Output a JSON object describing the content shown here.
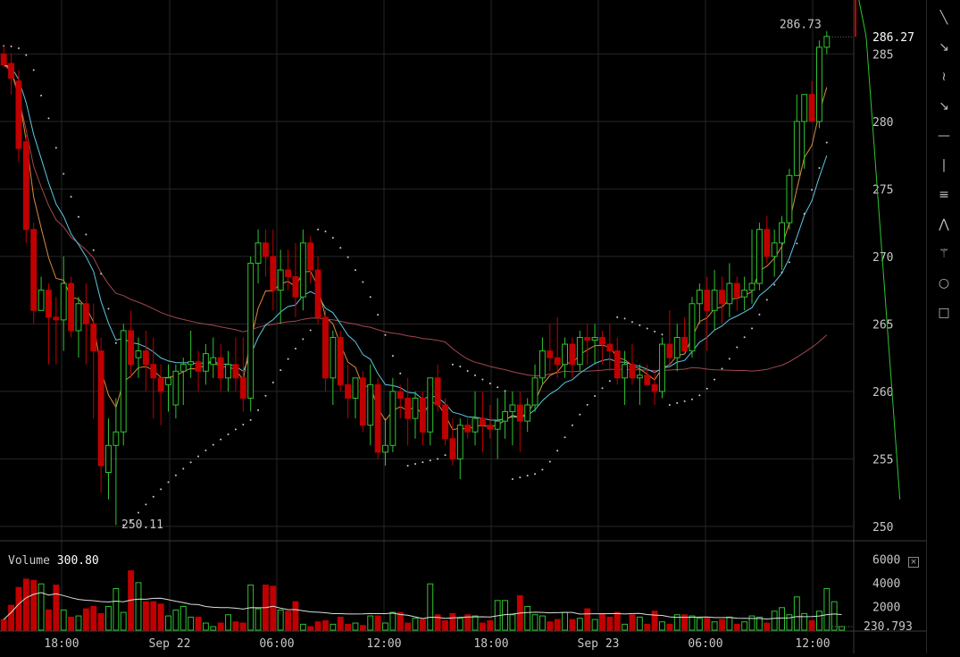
{
  "toolbar": {
    "tools": [
      {
        "name": "trend-line-icon",
        "glyph": "╲"
      },
      {
        "name": "ray-icon",
        "glyph": "↘"
      },
      {
        "name": "freehand-icon",
        "glyph": "≀"
      },
      {
        "name": "arrow-icon",
        "glyph": "↘"
      },
      {
        "name": "horizontal-line-icon",
        "glyph": "—"
      },
      {
        "name": "vertical-line-icon",
        "glyph": "|"
      },
      {
        "name": "parallel-channel-icon",
        "glyph": "≡"
      },
      {
        "name": "fan-icon",
        "glyph": "⋀"
      },
      {
        "name": "fibonacci-icon",
        "glyph": "⚚"
      },
      {
        "name": "circle-icon",
        "glyph": "○"
      },
      {
        "name": "rectangle-icon",
        "glyph": "□"
      }
    ]
  },
  "volume_panel": {
    "label": "Volume",
    "value": "300.80",
    "close_glyph": "×"
  },
  "colors": {
    "up": "#2fc42f",
    "down": "#c00000",
    "ma_fast": "#e08a3c",
    "ma_mid": "#5ec8e0",
    "ma_slow": "#a0484e",
    "sar": "#cccccc",
    "grid": "#262626",
    "text": "#c8c8c8"
  },
  "chart_data": {
    "type": "candlestick",
    "price_axis": {
      "ticks": [
        250,
        255,
        260,
        265,
        270,
        275,
        280,
        285
      ],
      "range": [
        249,
        289
      ]
    },
    "volume_axis": {
      "ticks": [
        2000,
        4000,
        6000
      ],
      "range": [
        0,
        7000
      ]
    },
    "time_labels": [
      "18:00",
      "Sep 22",
      "06:00",
      "12:00",
      "18:00",
      "Sep 23",
      "06:00",
      "12:00"
    ],
    "last_price": "286.27",
    "high_marker": "286.73",
    "low_marker": "250.11",
    "last_volume": "230.793",
    "candles": [
      [
        285.0,
        285.6,
        284.0,
        284.2
      ],
      [
        284.3,
        285.0,
        282.0,
        283.2
      ],
      [
        283.0,
        283.8,
        277.0,
        278.0
      ],
      [
        278.5,
        279.0,
        271.0,
        272.0
      ],
      [
        272.0,
        272.5,
        265.0,
        266.0
      ],
      [
        266.0,
        268.5,
        266.0,
        267.5
      ],
      [
        267.5,
        268.0,
        262.0,
        265.5
      ],
      [
        265.5,
        267.0,
        262.0,
        265.3
      ],
      [
        265.3,
        270.0,
        263.0,
        268.0
      ],
      [
        268.0,
        268.5,
        264.0,
        264.5
      ],
      [
        264.5,
        267.0,
        262.5,
        266.5
      ],
      [
        266.5,
        268.0,
        262.0,
        265.0
      ],
      [
        265.0,
        266.5,
        258.0,
        263.0
      ],
      [
        263.0,
        264.0,
        252.5,
        254.5
      ],
      [
        254.0,
        258.0,
        252.0,
        256.0
      ],
      [
        256.0,
        259.5,
        250.1,
        257.0
      ],
      [
        257.0,
        265.0,
        256.0,
        264.5
      ],
      [
        264.5,
        266.0,
        261.0,
        262.0
      ],
      [
        262.5,
        264.0,
        261.0,
        263.0
      ],
      [
        263.0,
        264.5,
        260.0,
        262.0
      ],
      [
        262.0,
        264.0,
        258.0,
        261.0
      ],
      [
        261.0,
        262.0,
        257.5,
        260.0
      ],
      [
        260.5,
        262.0,
        258.5,
        261.0
      ],
      [
        259.0,
        262.0,
        258.0,
        261.5
      ],
      [
        261.5,
        262.5,
        259.0,
        262.0
      ],
      [
        262.0,
        264.5,
        261.0,
        262.2
      ],
      [
        262.2,
        263.0,
        260.0,
        261.5
      ],
      [
        261.5,
        263.5,
        260.5,
        262.8
      ],
      [
        262.0,
        264.0,
        261.0,
        262.5
      ],
      [
        262.5,
        263.5,
        260.0,
        261.0
      ],
      [
        261.0,
        263.0,
        260.0,
        262.0
      ],
      [
        262.0,
        264.0,
        260.0,
        261.0
      ],
      [
        261.0,
        264.0,
        258.5,
        259.5
      ],
      [
        259.5,
        270.0,
        258.5,
        269.5
      ],
      [
        269.5,
        272.0,
        268.0,
        271.0
      ],
      [
        271.0,
        272.0,
        268.5,
        270.0
      ],
      [
        270.0,
        272.0,
        266.0,
        267.5
      ],
      [
        267.5,
        270.5,
        265.0,
        269.0
      ],
      [
        269.0,
        270.5,
        267.5,
        268.5
      ],
      [
        268.5,
        271.0,
        265.5,
        267.0
      ],
      [
        267.0,
        272.0,
        266.0,
        271.0
      ],
      [
        271.0,
        271.5,
        268.0,
        269.0
      ],
      [
        269.0,
        270.0,
        265.0,
        265.5
      ],
      [
        265.5,
        266.0,
        260.0,
        261.0
      ],
      [
        261.0,
        264.5,
        259.0,
        264.0
      ],
      [
        264.0,
        264.5,
        260.0,
        260.5
      ],
      [
        260.5,
        262.0,
        258.0,
        259.5
      ],
      [
        259.5,
        261.0,
        258.0,
        261.0
      ],
      [
        261.0,
        261.5,
        257.0,
        257.5
      ],
      [
        257.5,
        262.0,
        256.0,
        260.5
      ],
      [
        260.5,
        261.0,
        255.0,
        255.5
      ],
      [
        255.5,
        258.0,
        254.5,
        256.0
      ],
      [
        256.0,
        261.0,
        255.5,
        260.0
      ],
      [
        260.0,
        260.5,
        258.0,
        259.5
      ],
      [
        259.5,
        261.0,
        256.0,
        258.0
      ],
      [
        258.0,
        260.0,
        256.5,
        259.5
      ],
      [
        259.5,
        260.0,
        256.0,
        257.0
      ],
      [
        257.0,
        261.0,
        256.0,
        261.0
      ],
      [
        261.0,
        262.0,
        258.5,
        259.0
      ],
      [
        259.0,
        259.5,
        256.0,
        256.5
      ],
      [
        256.5,
        258.0,
        254.5,
        255.0
      ],
      [
        255.0,
        258.0,
        253.5,
        257.5
      ],
      [
        257.5,
        258.0,
        256.5,
        257.0
      ],
      [
        257.0,
        260.0,
        256.0,
        258.0
      ],
      [
        258.0,
        260.0,
        255.5,
        257.5
      ],
      [
        257.5,
        259.0,
        256.5,
        257.2
      ],
      [
        257.2,
        259.5,
        255.0,
        257.8
      ],
      [
        257.8,
        260.0,
        256.5,
        258.5
      ],
      [
        258.5,
        260.0,
        256.0,
        259.0
      ],
      [
        259.0,
        260.0,
        255.5,
        257.8
      ],
      [
        257.8,
        259.5,
        257.0,
        259.0
      ],
      [
        259.0,
        262.0,
        258.5,
        261.0
      ],
      [
        261.0,
        264.0,
        260.5,
        263.0
      ],
      [
        263.0,
        265.0,
        261.5,
        262.5
      ],
      [
        262.5,
        265.5,
        261.0,
        262.0
      ],
      [
        262.0,
        264.0,
        261.0,
        263.5
      ],
      [
        263.5,
        264.0,
        261.0,
        262.0
      ],
      [
        262.0,
        264.5,
        261.5,
        264.0
      ],
      [
        264.0,
        265.0,
        262.0,
        263.8
      ],
      [
        263.8,
        265.0,
        262.0,
        264.0
      ],
      [
        264.0,
        264.5,
        262.0,
        263.5
      ],
      [
        263.5,
        265.0,
        261.5,
        263.0
      ],
      [
        263.0,
        264.0,
        260.5,
        261.0
      ],
      [
        261.0,
        263.0,
        259.0,
        262.0
      ],
      [
        262.0,
        263.5,
        260.5,
        261.0
      ],
      [
        261.0,
        262.0,
        259.0,
        261.2
      ],
      [
        261.2,
        262.0,
        260.5,
        260.5
      ],
      [
        260.5,
        261.5,
        259.0,
        260.0
      ],
      [
        260.0,
        264.0,
        259.5,
        263.5
      ],
      [
        263.5,
        266.0,
        262.0,
        262.5
      ],
      [
        262.5,
        265.0,
        261.5,
        264.0
      ],
      [
        264.0,
        265.5,
        263.0,
        263.0
      ],
      [
        263.0,
        267.0,
        262.5,
        266.5
      ],
      [
        266.5,
        268.0,
        265.0,
        267.5
      ],
      [
        267.5,
        268.5,
        263.0,
        266.0
      ],
      [
        266.0,
        269.0,
        264.5,
        267.5
      ],
      [
        267.5,
        268.5,
        265.0,
        266.5
      ],
      [
        266.5,
        269.5,
        265.5,
        268.0
      ],
      [
        268.0,
        268.5,
        266.0,
        267.0
      ],
      [
        267.0,
        268.5,
        266.0,
        267.5
      ],
      [
        267.5,
        272.0,
        266.5,
        268.0
      ],
      [
        268.0,
        272.5,
        267.5,
        272.0
      ],
      [
        272.0,
        273.0,
        269.5,
        270.0
      ],
      [
        270.0,
        272.0,
        268.5,
        271.0
      ],
      [
        271.0,
        273.0,
        269.0,
        272.5
      ],
      [
        272.5,
        276.5,
        272.0,
        276.0
      ],
      [
        276.0,
        282.0,
        276.0,
        280.0
      ],
      [
        280.0,
        282.0,
        276.5,
        282.0
      ],
      [
        282.0,
        283.0,
        280.0,
        280.0
      ],
      [
        280.0,
        286.0,
        279.5,
        285.5
      ],
      [
        285.5,
        286.7,
        285.0,
        286.3
      ]
    ],
    "volumes": [
      900,
      2100,
      3600,
      4300,
      4200,
      3900,
      1700,
      3800,
      1700,
      1100,
      1200,
      1800,
      2000,
      1400,
      2000,
      3500,
      1500,
      5000,
      4000,
      2400,
      2400,
      2200,
      1200,
      1700,
      2000,
      1100,
      1100,
      600,
      300,
      600,
      1300,
      700,
      600,
      3800,
      1800,
      3800,
      3700,
      1700,
      1600,
      2400,
      500,
      300,
      700,
      800,
      500,
      1100,
      500,
      600,
      400,
      1200,
      1200,
      600,
      1500,
      1500,
      600,
      1000,
      900,
      3900,
      1300,
      800,
      1400,
      1000,
      1300,
      1200,
      600,
      800,
      2500,
      2500,
      1300,
      2900,
      2000,
      1300,
      1200,
      700,
      900,
      1500,
      900,
      1000,
      1800,
      900,
      1400,
      1100,
      1500,
      500,
      1300,
      1100,
      500,
      1600,
      700,
      500,
      1300,
      1300,
      1200,
      1000,
      1000,
      700,
      900,
      1100,
      500,
      700,
      1200,
      1100,
      600,
      1600,
      1900,
      1300,
      2800,
      1400,
      800,
      1600,
      3500,
      2400,
      300
    ]
  }
}
